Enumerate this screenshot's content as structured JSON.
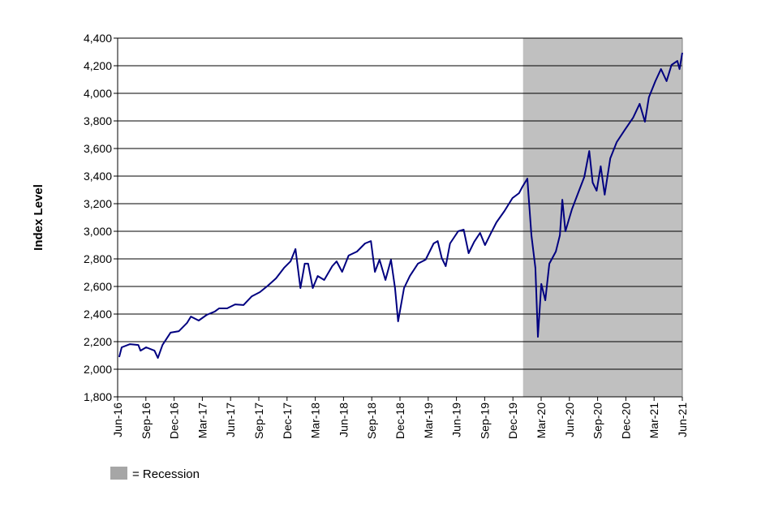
{
  "chart_data": {
    "type": "line",
    "title": "",
    "xlabel": "",
    "ylabel": "Index Level",
    "ylim": [
      1800,
      4400
    ],
    "y_ticks": [
      "1,800",
      "2,000",
      "2,200",
      "2,400",
      "2,600",
      "2,800",
      "3,000",
      "3,200",
      "3,400",
      "3,600",
      "3,800",
      "4,000",
      "4,200",
      "4,400"
    ],
    "x_ticks": [
      "Jun-16",
      "Sep-16",
      "Dec-16",
      "Mar-17",
      "Jun-17",
      "Sep-17",
      "Dec-17",
      "Mar-18",
      "Jun-18",
      "Sep-18",
      "Dec-18",
      "Mar-19",
      "Jun-19",
      "Sep-19",
      "Dec-19",
      "Mar-20",
      "Jun-20",
      "Sep-20",
      "Dec-20",
      "Mar-21",
      "Jun-21"
    ],
    "xlim": [
      "2016-06-30",
      "2021-06-30"
    ],
    "grid": "horizontal",
    "line_color": "#000080",
    "shading_color": "#c0c0c0",
    "recession": {
      "start": "2020-02-01",
      "end": "2021-06-30"
    },
    "legend": {
      "label": "= Recession",
      "placement": "bottom-left"
    },
    "series": [
      {
        "points": [
          [
            "2016-07-05",
            2088
          ],
          [
            "2016-07-13",
            2159
          ],
          [
            "2016-08-09",
            2182
          ],
          [
            "2016-09-05",
            2176
          ],
          [
            "2016-09-12",
            2135
          ],
          [
            "2016-09-30",
            2159
          ],
          [
            "2016-10-27",
            2135
          ],
          [
            "2016-11-07",
            2082
          ],
          [
            "2016-11-22",
            2176
          ],
          [
            "2016-12-18",
            2265
          ],
          [
            "2017-01-14",
            2276
          ],
          [
            "2017-02-09",
            2335
          ],
          [
            "2017-02-22",
            2382
          ],
          [
            "2017-03-19",
            2353
          ],
          [
            "2017-04-14",
            2394
          ],
          [
            "2017-05-10",
            2418
          ],
          [
            "2017-05-24",
            2441
          ],
          [
            "2017-06-19",
            2441
          ],
          [
            "2017-07-15",
            2470
          ],
          [
            "2017-08-11",
            2465
          ],
          [
            "2017-09-07",
            2529
          ],
          [
            "2017-10-03",
            2559
          ],
          [
            "2017-10-29",
            2606
          ],
          [
            "2017-11-24",
            2659
          ],
          [
            "2017-12-20",
            2735
          ],
          [
            "2018-01-10",
            2782
          ],
          [
            "2018-01-26",
            2871
          ],
          [
            "2018-02-11",
            2588
          ],
          [
            "2018-02-25",
            2765
          ],
          [
            "2018-03-08",
            2765
          ],
          [
            "2018-03-23",
            2588
          ],
          [
            "2018-04-08",
            2676
          ],
          [
            "2018-04-29",
            2647
          ],
          [
            "2018-05-25",
            2747
          ],
          [
            "2018-06-08",
            2782
          ],
          [
            "2018-06-26",
            2706
          ],
          [
            "2018-07-17",
            2824
          ],
          [
            "2018-08-13",
            2853
          ],
          [
            "2018-09-08",
            2912
          ],
          [
            "2018-09-27",
            2929
          ],
          [
            "2018-10-10",
            2706
          ],
          [
            "2018-10-25",
            2794
          ],
          [
            "2018-11-13",
            2647
          ],
          [
            "2018-12-01",
            2794
          ],
          [
            "2018-12-14",
            2588
          ],
          [
            "2018-12-24",
            2347
          ],
          [
            "2019-01-12",
            2588
          ],
          [
            "2019-01-31",
            2676
          ],
          [
            "2019-02-26",
            2765
          ],
          [
            "2019-03-23",
            2794
          ],
          [
            "2019-04-18",
            2912
          ],
          [
            "2019-05-01",
            2929
          ],
          [
            "2019-05-14",
            2806
          ],
          [
            "2019-05-27",
            2747
          ],
          [
            "2019-06-10",
            2912
          ],
          [
            "2019-07-06",
            3000
          ],
          [
            "2019-07-24",
            3012
          ],
          [
            "2019-08-09",
            2841
          ],
          [
            "2019-08-27",
            2924
          ],
          [
            "2019-09-15",
            2988
          ],
          [
            "2019-10-01",
            2900
          ],
          [
            "2019-10-19",
            2982
          ],
          [
            "2019-11-07",
            3065
          ],
          [
            "2019-12-03",
            3147
          ],
          [
            "2019-12-29",
            3241
          ],
          [
            "2020-01-19",
            3276
          ],
          [
            "2020-01-30",
            3323
          ],
          [
            "2020-02-15",
            3382
          ],
          [
            "2020-02-28",
            2971
          ],
          [
            "2020-03-12",
            2735
          ],
          [
            "2020-03-20",
            2235
          ],
          [
            "2020-03-31",
            2618
          ],
          [
            "2020-04-13",
            2500
          ],
          [
            "2020-04-26",
            2765
          ],
          [
            "2020-05-17",
            2853
          ],
          [
            "2020-05-30",
            2971
          ],
          [
            "2020-06-07",
            3229
          ],
          [
            "2020-06-17",
            3000
          ],
          [
            "2020-07-08",
            3159
          ],
          [
            "2020-07-26",
            3265
          ],
          [
            "2020-08-17",
            3394
          ],
          [
            "2020-09-02",
            3582
          ],
          [
            "2020-09-13",
            3353
          ],
          [
            "2020-09-26",
            3294
          ],
          [
            "2020-10-09",
            3471
          ],
          [
            "2020-10-22",
            3265
          ],
          [
            "2020-11-09",
            3529
          ],
          [
            "2020-11-30",
            3647
          ],
          [
            "2020-12-26",
            3735
          ],
          [
            "2021-01-22",
            3824
          ],
          [
            "2021-02-12",
            3924
          ],
          [
            "2021-03-01",
            3794
          ],
          [
            "2021-03-14",
            3971
          ],
          [
            "2021-04-04",
            4088
          ],
          [
            "2021-04-22",
            4176
          ],
          [
            "2021-05-10",
            4088
          ],
          [
            "2021-05-26",
            4206
          ],
          [
            "2021-06-14",
            4235
          ],
          [
            "2021-06-21",
            4176
          ],
          [
            "2021-06-30",
            4294
          ]
        ]
      }
    ]
  }
}
